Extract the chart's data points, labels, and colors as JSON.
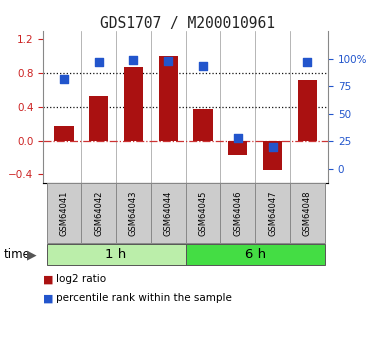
{
  "title": "GDS1707 / M200010961",
  "samples": [
    "GSM64041",
    "GSM64042",
    "GSM64043",
    "GSM64044",
    "GSM64045",
    "GSM64046",
    "GSM64047",
    "GSM64048"
  ],
  "log2_ratio": [
    0.18,
    0.53,
    0.87,
    1.0,
    0.38,
    -0.17,
    -0.35,
    0.72
  ],
  "percentile_rank": [
    82,
    97,
    99,
    98,
    93,
    28,
    20,
    97
  ],
  "bar_color": "#aa1111",
  "dot_color": "#2255cc",
  "groups": [
    {
      "label": "1 h",
      "indices": [
        0,
        1,
        2,
        3
      ],
      "color": "#bbeeaa"
    },
    {
      "label": "6 h",
      "indices": [
        4,
        5,
        6,
        7
      ],
      "color": "#44dd44"
    }
  ],
  "time_label": "time",
  "ylim_left": [
    -0.5,
    1.3
  ],
  "ylim_right": [
    -12.5,
    125
  ],
  "yticks_left": [
    -0.4,
    0.0,
    0.4,
    0.8,
    1.2
  ],
  "yticks_right": [
    0,
    25,
    50,
    75,
    100
  ],
  "ytick_labels_right": [
    "0",
    "25",
    "50",
    "75",
    "100%"
  ],
  "hlines": [
    0.0,
    0.4,
    0.8
  ],
  "hline_styles": [
    "dashdot",
    "dotted",
    "dotted"
  ],
  "hline_colors": [
    "#cc3333",
    "#111111",
    "#111111"
  ],
  "legend_items": [
    {
      "color": "#aa1111",
      "label": "log2 ratio"
    },
    {
      "color": "#2255cc",
      "label": "percentile rank within the sample"
    }
  ],
  "background_color": "#ffffff",
  "sample_box_color": "#cccccc",
  "sample_box_edge": "#888888"
}
